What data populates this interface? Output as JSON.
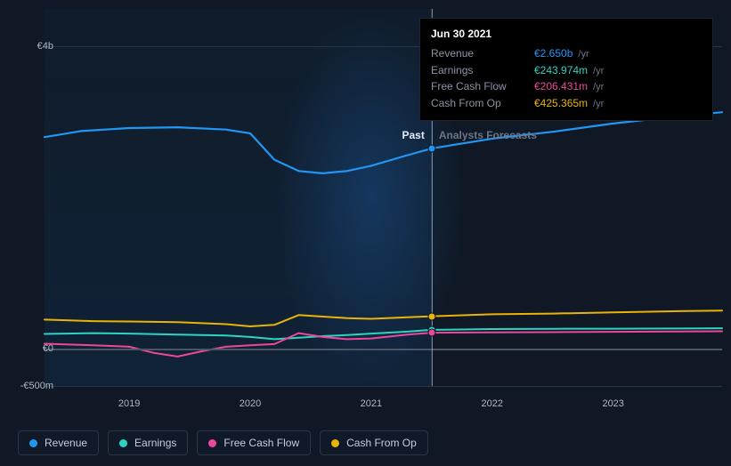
{
  "chart": {
    "type": "line",
    "background_color": "#0f1824",
    "grid_color": "#2a3544",
    "zero_line_color": "#4a5668",
    "text_color": "#b0b8c4",
    "y_axis": {
      "min_m": -500,
      "max_m": 4500,
      "labels": [
        {
          "value_m": 4000,
          "text": "€4b"
        },
        {
          "value_m": 0,
          "text": "€0"
        },
        {
          "value_m": -500,
          "text": "-€500m"
        }
      ]
    },
    "x_axis": {
      "min_year": 2018.3,
      "max_year": 2023.9,
      "labels": [
        {
          "year": 2019,
          "text": "2019"
        },
        {
          "year": 2020,
          "text": "2020"
        },
        {
          "year": 2021,
          "text": "2021"
        },
        {
          "year": 2022,
          "text": "2022"
        },
        {
          "year": 2023,
          "text": "2023"
        }
      ]
    },
    "regions": {
      "past_end_year": 2021.5,
      "past_label": "Past",
      "forecast_label": "Analysts Forecasts"
    },
    "hover": {
      "year": 2021.5,
      "gradient_center_year": 2021.0,
      "gradient_width_years": 1.6
    },
    "series": [
      {
        "key": "revenue",
        "label": "Revenue",
        "color": "#2196f3",
        "width": 2.2,
        "points": [
          [
            2018.3,
            2800
          ],
          [
            2018.6,
            2880
          ],
          [
            2019.0,
            2920
          ],
          [
            2019.4,
            2930
          ],
          [
            2019.8,
            2900
          ],
          [
            2020.0,
            2850
          ],
          [
            2020.2,
            2500
          ],
          [
            2020.4,
            2350
          ],
          [
            2020.6,
            2320
          ],
          [
            2020.8,
            2350
          ],
          [
            2021.0,
            2420
          ],
          [
            2021.3,
            2560
          ],
          [
            2021.5,
            2650
          ],
          [
            2022.0,
            2780
          ],
          [
            2022.5,
            2870
          ],
          [
            2023.0,
            2980
          ],
          [
            2023.5,
            3070
          ],
          [
            2023.9,
            3130
          ]
        ]
      },
      {
        "key": "cash_from_op",
        "label": "Cash From Op",
        "color": "#eab308",
        "width": 2,
        "points": [
          [
            2018.3,
            380
          ],
          [
            2018.7,
            360
          ],
          [
            2019.0,
            355
          ],
          [
            2019.4,
            345
          ],
          [
            2019.8,
            320
          ],
          [
            2020.0,
            290
          ],
          [
            2020.2,
            310
          ],
          [
            2020.4,
            440
          ],
          [
            2020.6,
            420
          ],
          [
            2020.8,
            400
          ],
          [
            2021.0,
            390
          ],
          [
            2021.3,
            410
          ],
          [
            2021.5,
            425
          ],
          [
            2022.0,
            450
          ],
          [
            2022.5,
            460
          ],
          [
            2023.0,
            475
          ],
          [
            2023.5,
            490
          ],
          [
            2023.9,
            500
          ]
        ]
      },
      {
        "key": "earnings",
        "label": "Earnings",
        "color": "#2dd4bf",
        "width": 2,
        "points": [
          [
            2018.3,
            190
          ],
          [
            2018.7,
            200
          ],
          [
            2019.0,
            195
          ],
          [
            2019.4,
            180
          ],
          [
            2019.8,
            170
          ],
          [
            2020.0,
            150
          ],
          [
            2020.2,
            120
          ],
          [
            2020.4,
            140
          ],
          [
            2020.6,
            160
          ],
          [
            2020.8,
            175
          ],
          [
            2021.0,
            195
          ],
          [
            2021.3,
            220
          ],
          [
            2021.5,
            244
          ],
          [
            2022.0,
            255
          ],
          [
            2022.5,
            258
          ],
          [
            2023.0,
            260
          ],
          [
            2023.5,
            262
          ],
          [
            2023.9,
            265
          ]
        ]
      },
      {
        "key": "fcf",
        "label": "Free Cash Flow",
        "color": "#ec4899",
        "width": 2,
        "points": [
          [
            2018.3,
            60
          ],
          [
            2018.7,
            40
          ],
          [
            2019.0,
            20
          ],
          [
            2019.2,
            -60
          ],
          [
            2019.4,
            -110
          ],
          [
            2019.6,
            -40
          ],
          [
            2019.8,
            20
          ],
          [
            2020.0,
            40
          ],
          [
            2020.2,
            55
          ],
          [
            2020.4,
            200
          ],
          [
            2020.6,
            150
          ],
          [
            2020.8,
            120
          ],
          [
            2021.0,
            130
          ],
          [
            2021.3,
            180
          ],
          [
            2021.5,
            206
          ],
          [
            2022.0,
            210
          ],
          [
            2022.5,
            214
          ],
          [
            2023.0,
            218
          ],
          [
            2023.5,
            222
          ],
          [
            2023.9,
            225
          ]
        ]
      }
    ],
    "hover_markers": [
      {
        "series": "revenue",
        "year": 2021.5,
        "value_m": 2650,
        "color": "#2196f3"
      },
      {
        "series": "cash_from_op",
        "year": 2021.5,
        "value_m": 425,
        "color": "#eab308"
      },
      {
        "series": "earnings",
        "year": 2021.5,
        "value_m": 244,
        "color": "#2dd4bf"
      },
      {
        "series": "fcf",
        "year": 2021.5,
        "value_m": 206,
        "color": "#ec4899"
      }
    ]
  },
  "tooltip": {
    "date": "Jun 30 2021",
    "rows": [
      {
        "label": "Revenue",
        "value": "€2.650b",
        "unit": "/yr",
        "color": "#2196f3"
      },
      {
        "label": "Earnings",
        "value": "€243.974m",
        "unit": "/yr",
        "color": "#2dd4bf"
      },
      {
        "label": "Free Cash Flow",
        "value": "€206.431m",
        "unit": "/yr",
        "color": "#ec4899"
      },
      {
        "label": "Cash From Op",
        "value": "€425.365m",
        "unit": "/yr",
        "color": "#eab308"
      }
    ]
  },
  "legend": [
    {
      "label": "Revenue",
      "color": "#2196f3"
    },
    {
      "label": "Earnings",
      "color": "#2dd4bf"
    },
    {
      "label": "Free Cash Flow",
      "color": "#ec4899"
    },
    {
      "label": "Cash From Op",
      "color": "#eab308"
    }
  ]
}
